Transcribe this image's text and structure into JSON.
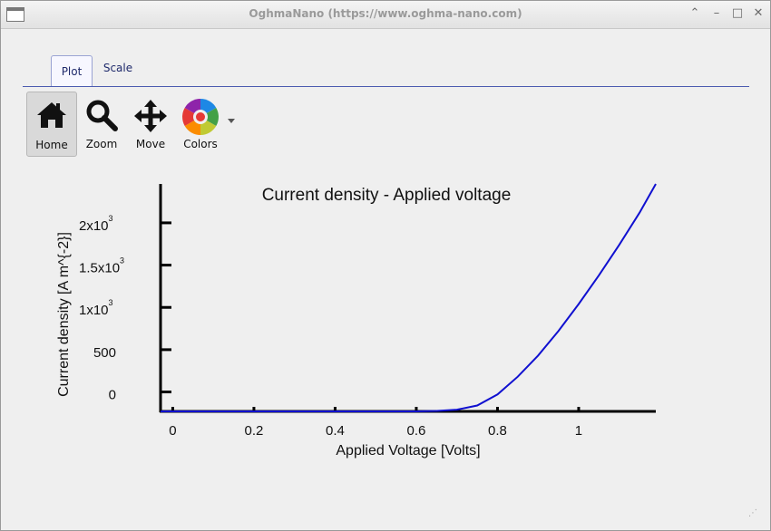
{
  "window": {
    "title": "OghmaNano (https://www.oghma-nano.com)"
  },
  "tabs": [
    {
      "label": "Plot"
    },
    {
      "label": "Scale"
    }
  ],
  "toolbar": {
    "home_label": "Home",
    "zoom_label": "Zoom",
    "move_label": "Move",
    "colors_label": "Colors"
  },
  "chart_data": {
    "type": "line",
    "title": "Current density - Applied voltage",
    "xlabel": "Applied Voltage [Volts]",
    "ylabel": "Current density [A m^{-2}]",
    "xlim": [
      -0.03,
      1.19
    ],
    "ylim": [
      -230,
      2460
    ],
    "x_ticks": [
      {
        "value": 0,
        "label": "0"
      },
      {
        "value": 0.2,
        "label": "0.2"
      },
      {
        "value": 0.4,
        "label": "0.4"
      },
      {
        "value": 0.6,
        "label": "0.6"
      },
      {
        "value": 0.8,
        "label": "0.8"
      },
      {
        "value": 1,
        "label": "1"
      }
    ],
    "y_ticks": [
      {
        "value": 0,
        "label": "0",
        "sup": ""
      },
      {
        "value": 500,
        "label": "500",
        "sup": ""
      },
      {
        "value": 1000,
        "label": "1x10",
        "sup": "3"
      },
      {
        "value": 1500,
        "label": "1.5x10",
        "sup": "3"
      },
      {
        "value": 2000,
        "label": "2x10",
        "sup": "3"
      }
    ],
    "grid": false,
    "series": [
      {
        "color": "#1010d0",
        "x": [
          -0.03,
          0.6,
          0.65,
          0.7,
          0.75,
          0.8,
          0.85,
          0.9,
          0.95,
          1.0,
          1.05,
          1.1,
          1.15,
          1.19
        ],
        "y": [
          -230,
          -230,
          -225,
          -210,
          -160,
          -30,
          180,
          430,
          720,
          1040,
          1380,
          1740,
          2120,
          2460
        ]
      }
    ]
  }
}
